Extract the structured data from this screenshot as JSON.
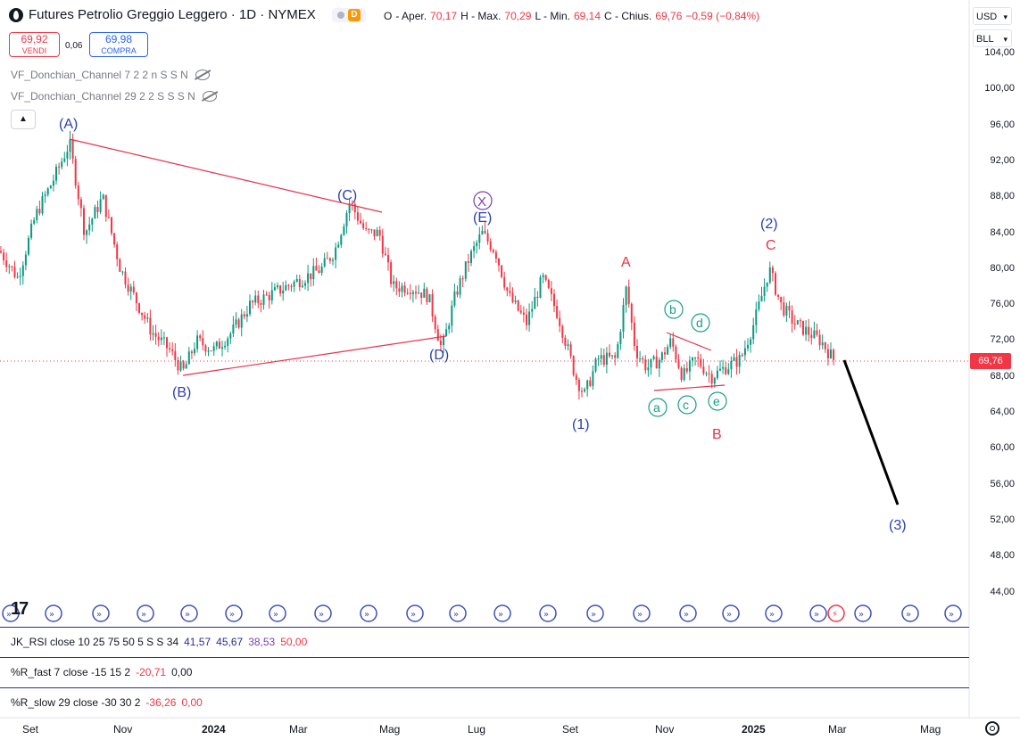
{
  "header": {
    "title": "Futures Petrolio Greggio Leggero · 1D · NYMEX",
    "badge_letter": "D",
    "ohlc": {
      "open_label": "O",
      "open_prefix": "- Aper.",
      "open": "70,17",
      "high_label": "H - Max.",
      "high": "70,29",
      "low_label": "L - Min.",
      "low": "69,14",
      "close_label": "C - Chius.",
      "close": "69,76",
      "change": "−0,59 (−0,84%)"
    }
  },
  "trade": {
    "sell_price": "69,92",
    "sell_label": "VENDI",
    "spread": "0,06",
    "buy_price": "69,98",
    "buy_label": "COMPRA"
  },
  "indicators": {
    "donchian1": "VF_Donchian_Channel 7 2 2 n S S N",
    "donchian2": "VF_Donchian_Channel 29 2 2 S S S N"
  },
  "right_controls": {
    "currency": "USD",
    "unit": "BLL"
  },
  "current_price": "69,76",
  "price_axis": [
    "104,00",
    "100,00",
    "96,00",
    "92,00",
    "88,00",
    "84,00",
    "80,00",
    "76,00",
    "72,00",
    "68,00",
    "64,00",
    "60,00",
    "56,00",
    "52,00",
    "48,00",
    "44,00"
  ],
  "time_axis": [
    "Set",
    "Nov",
    "2024",
    "Mar",
    "Mag",
    "Lug",
    "Set",
    "Nov",
    "2025",
    "Mar",
    "Mag"
  ],
  "panes": {
    "rsi": {
      "label": "JK_RSI close 10 25 75 50 5 S S 34",
      "v1": "41,57",
      "v2": "45,67",
      "v3": "38,53",
      "v4": "50,00"
    },
    "rfast": {
      "label": "%R_fast 7 close -15 15 2",
      "v1": "-20,71",
      "v2": "0,00"
    },
    "rslow": {
      "label": "%R_slow 29 close -30 30 2",
      "v1": "-36,26",
      "v2": "0,00"
    }
  },
  "wave_labels": {
    "A_major": "(A)",
    "B_major": "(B)",
    "C_major": "(C)",
    "D_major": "(D)",
    "E_major": "(E)",
    "X_major": "X",
    "w1": "(1)",
    "w2": "(2)",
    "w3": "(3)",
    "red_A": "A",
    "red_B": "B",
    "red_C": "C",
    "a": "a",
    "b": "b",
    "c": "c",
    "d": "d",
    "e": "e"
  },
  "colors": {
    "up": "#089981",
    "down": "#f23645",
    "wave_blue": "#2a3fb0",
    "wave_red": "#e8314a",
    "wave_green": "#16a085",
    "trendline": "#e8314a",
    "projection": "#000000"
  }
}
